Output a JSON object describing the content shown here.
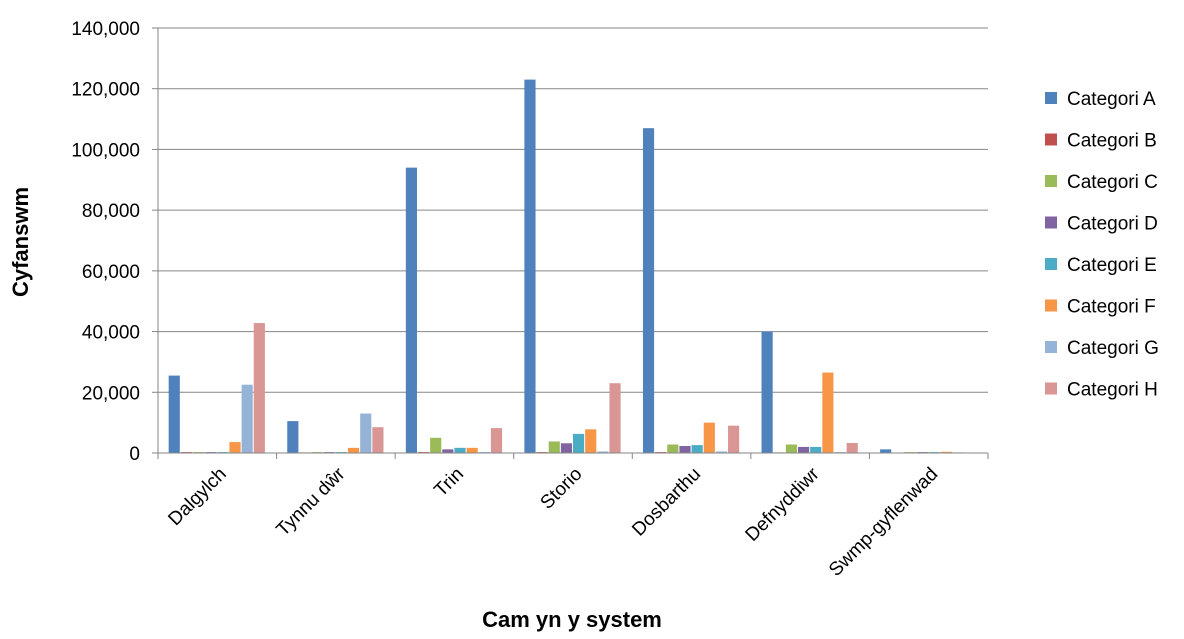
{
  "chart_data": {
    "type": "bar",
    "title": "",
    "xlabel": "Cam yn y system",
    "ylabel": "Cyfanswm",
    "ylim": [
      0,
      140000
    ],
    "yticks": [
      0,
      20000,
      40000,
      60000,
      80000,
      100000,
      120000,
      140000
    ],
    "ytick_labels": [
      "0",
      "20,000",
      "40,000",
      "60,000",
      "80,000",
      "100,000",
      "120,000",
      "140,000"
    ],
    "grid": "horizontal",
    "legend_position": "right",
    "categories": [
      "Dalgylch",
      "Tynnu dŵr",
      "Trin",
      "Storio",
      "Dosbarthu",
      "Defnyddiwr",
      "Swmp-gyflenwad"
    ],
    "series": [
      {
        "name": "Categori A",
        "color": "#4F81BD",
        "values": [
          25500,
          10500,
          94000,
          123000,
          107000,
          40000,
          1200
        ]
      },
      {
        "name": "Categori B",
        "color": "#C0504D",
        "values": [
          300,
          200,
          300,
          300,
          300,
          200,
          100
        ]
      },
      {
        "name": "Categori C",
        "color": "#9BBB59",
        "values": [
          300,
          300,
          5000,
          3800,
          2800,
          2800,
          300
        ]
      },
      {
        "name": "Categori D",
        "color": "#8064A2",
        "values": [
          300,
          300,
          1200,
          3200,
          2300,
          2000,
          300
        ]
      },
      {
        "name": "Categori E",
        "color": "#4BACC6",
        "values": [
          300,
          300,
          1700,
          6300,
          2600,
          2000,
          300
        ]
      },
      {
        "name": "Categori F",
        "color": "#F79646",
        "values": [
          3600,
          1700,
          1700,
          7800,
          10000,
          26500,
          400
        ]
      },
      {
        "name": "Categori G",
        "color": "#95B3D7",
        "values": [
          22500,
          13000,
          300,
          500,
          500,
          300,
          200
        ]
      },
      {
        "name": "Categori H",
        "color": "#D99694",
        "values": [
          42800,
          8500,
          8200,
          23000,
          9000,
          3300,
          0
        ]
      }
    ]
  }
}
